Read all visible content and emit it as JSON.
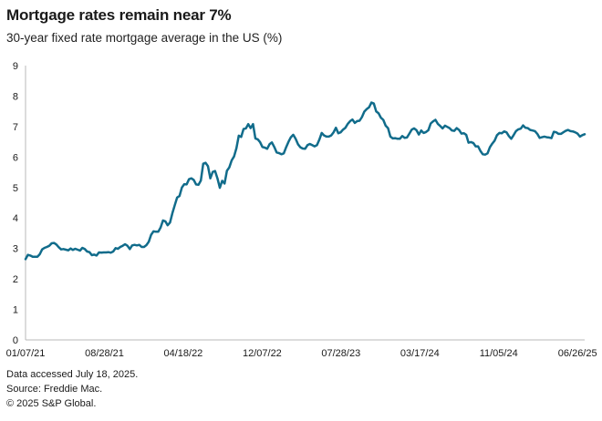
{
  "header": {
    "title": "Mortgage rates remain near 7%",
    "subtitle": "30-year fixed rate mortgage average in the US (%)"
  },
  "footer": {
    "accessed": "Data accessed July 18, 2025.",
    "source": "Source: Freddie Mac.",
    "copyright": "© 2025 S&P Global."
  },
  "colors": {
    "line": "#116c8b",
    "axis": "#b9b9b9",
    "text": "#1a1a1a",
    "background": "#ffffff"
  },
  "chart_data": {
    "type": "line",
    "title": "Mortgage rates remain near 7%",
    "subtitle": "30-year fixed rate mortgage average in the US (%)",
    "grid": false,
    "legend": "none",
    "ylim": [
      0,
      9
    ],
    "y_ticks": [
      0,
      1,
      2,
      3,
      4,
      5,
      6,
      7,
      8,
      9
    ],
    "x_tick_labels": [
      "01/07/21",
      "08/28/21",
      "04/18/22",
      "12/07/22",
      "07/28/23",
      "03/17/24",
      "11/05/24",
      "06/26/25"
    ],
    "x_tick_positions": [
      0,
      33.29,
      66.57,
      99.86,
      133.14,
      166.43,
      199.71,
      233
    ],
    "series": [
      {
        "name": "30-year fixed rate mortgage average (%)",
        "frequency": "weekly",
        "start_date": "01/07/21",
        "end_date": "07/17/25",
        "color": "#116c8b",
        "values": [
          2.65,
          2.79,
          2.77,
          2.73,
          2.73,
          2.73,
          2.81,
          2.97,
          3.02,
          3.05,
          3.09,
          3.17,
          3.18,
          3.13,
          3.04,
          2.97,
          2.98,
          2.96,
          2.94,
          3.0,
          2.95,
          2.99,
          2.96,
          2.93,
          3.02,
          2.98,
          2.9,
          2.88,
          2.78,
          2.8,
          2.77,
          2.87,
          2.86,
          2.87,
          2.87,
          2.88,
          2.86,
          2.9,
          3.01,
          2.99,
          3.05,
          3.09,
          3.14,
          3.09,
          2.98,
          3.1,
          3.12,
          3.1,
          3.12,
          3.05,
          3.05,
          3.11,
          3.22,
          3.45,
          3.56,
          3.55,
          3.55,
          3.69,
          3.92,
          3.89,
          3.76,
          3.85,
          4.16,
          4.42,
          4.67,
          4.72,
          5.0,
          5.11,
          5.1,
          5.27,
          5.3,
          5.25,
          5.1,
          5.09,
          5.23,
          5.78,
          5.81,
          5.7,
          5.3,
          5.51,
          5.54,
          5.3,
          4.99,
          5.22,
          5.13,
          5.55,
          5.66,
          5.89,
          6.02,
          6.29,
          6.7,
          6.66,
          6.92,
          6.94,
          7.08,
          6.95,
          7.08,
          6.61,
          6.58,
          6.49,
          6.33,
          6.31,
          6.27,
          6.42,
          6.48,
          6.33,
          6.15,
          6.13,
          6.09,
          6.12,
          6.32,
          6.5,
          6.65,
          6.73,
          6.6,
          6.42,
          6.32,
          6.28,
          6.27,
          6.39,
          6.43,
          6.39,
          6.35,
          6.39,
          6.57,
          6.79,
          6.71,
          6.67,
          6.67,
          6.71,
          6.81,
          6.96,
          6.78,
          6.81,
          6.9,
          6.96,
          7.09,
          7.18,
          7.23,
          7.12,
          7.18,
          7.19,
          7.31,
          7.49,
          7.57,
          7.63,
          7.79,
          7.76,
          7.5,
          7.44,
          7.29,
          7.22,
          7.03,
          6.95,
          6.67,
          6.61,
          6.62,
          6.6,
          6.6,
          6.69,
          6.63,
          6.64,
          6.77,
          6.9,
          6.94,
          6.88,
          6.74,
          6.87,
          6.79,
          6.82,
          6.88,
          7.1,
          7.17,
          7.22,
          7.09,
          7.02,
          6.94,
          7.03,
          6.99,
          6.95,
          6.87,
          6.86,
          6.95,
          6.89,
          6.77,
          6.78,
          6.73,
          6.47,
          6.49,
          6.46,
          6.35,
          6.35,
          6.2,
          6.09,
          6.08,
          6.12,
          6.32,
          6.44,
          6.54,
          6.72,
          6.79,
          6.78,
          6.84,
          6.81,
          6.69,
          6.6,
          6.72,
          6.85,
          6.91,
          6.93,
          7.04,
          6.96,
          6.95,
          6.89,
          6.87,
          6.85,
          6.76,
          6.63,
          6.65,
          6.67,
          6.65,
          6.64,
          6.62,
          6.83,
          6.81,
          6.76,
          6.76,
          6.81,
          6.86,
          6.89,
          6.85,
          6.84,
          6.81,
          6.77,
          6.67,
          6.72,
          6.75
        ]
      }
    ]
  }
}
